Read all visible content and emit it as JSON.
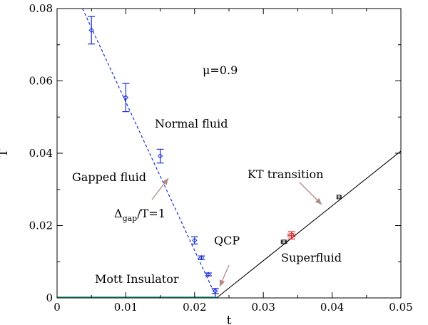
{
  "chart_data": {
    "type": "scatter",
    "title": "",
    "xlabel": "t",
    "ylabel": "T",
    "xlim": [
      0,
      0.05
    ],
    "ylim": [
      0,
      0.08
    ],
    "grid": false,
    "xticks": [
      "0",
      "0.01",
      "0.02",
      "0.03",
      "0.04",
      "0.05"
    ],
    "yticks": [
      "0",
      "0.02",
      "0.04",
      "0.06",
      "0.08"
    ],
    "colors": {
      "gapped_line": "#1a2fd6",
      "gapped_points": "#1a2fd6",
      "kt_line": "#000000",
      "kt_points": "#000000",
      "kt_highlight": "#d02020",
      "mott_baseline": "#1fa08a",
      "arrow": "#b48a86"
    },
    "series": [
      {
        "style": "dashed-line",
        "points": [
          [
            0.0037,
            0.08
          ],
          [
            0.0232,
            0.0
          ]
        ]
      },
      {
        "style": "points-with-yerr",
        "points": [
          {
            "x": 0.005,
            "y": 0.074,
            "yerr": 0.0038
          },
          {
            "x": 0.01,
            "y": 0.0554,
            "yerr": 0.0039
          },
          {
            "x": 0.015,
            "y": 0.0392,
            "yerr": 0.0019
          },
          {
            "x": 0.02,
            "y": 0.0159,
            "yerr": 0.001
          },
          {
            "x": 0.021,
            "y": 0.0111,
            "yerr": 0.0005
          },
          {
            "x": 0.022,
            "y": 0.0065,
            "yerr": 0.0004
          },
          {
            "x": 0.023,
            "y": 0.0019,
            "yerr": 0.0007
          }
        ]
      },
      {
        "style": "solid-line",
        "points": [
          [
            0.0232,
            0.0
          ],
          [
            0.05,
            0.0406
          ]
        ]
      },
      {
        "style": "points-with-xerr",
        "points": [
          {
            "x": 0.033,
            "y": 0.0155,
            "xerr": 0.0004
          },
          {
            "x": 0.041,
            "y": 0.0279,
            "xerr": 0.0003
          }
        ]
      },
      {
        "style": "points-with-xyerr",
        "points": [
          {
            "x": 0.0341,
            "y": 0.0173,
            "xerr": 0.0005,
            "yerr": 0.001
          }
        ]
      },
      {
        "style": "baseline",
        "points": [
          [
            0.0,
            0.0
          ],
          [
            0.0232,
            0.0
          ]
        ]
      }
    ],
    "annotations": {
      "mu": "μ=0.9",
      "normal_fluid": "Normal fluid",
      "gapped_fluid": "Gapped fluid",
      "delta": "Δ",
      "gap_sub": "gap",
      "delta_rest": "/T=1",
      "kt": "KT transition",
      "qcp": "QCP",
      "superfluid": "Superfluid",
      "mott": "Mott Insulator"
    }
  }
}
